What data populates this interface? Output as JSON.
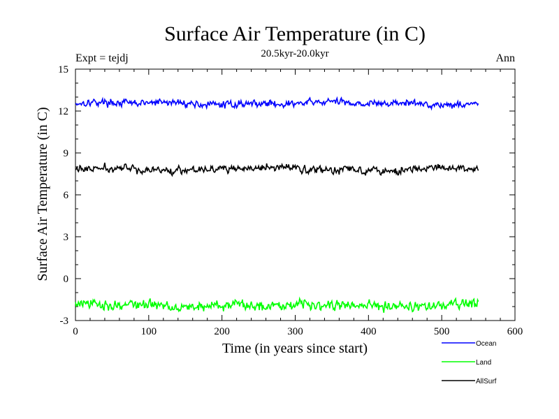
{
  "chart_data": {
    "type": "line",
    "title": "Surface Air Temperature (in C)",
    "subtitle": "20.5kyr-20.0kyr",
    "left_label": "Expt = tejdj",
    "right_label": "Ann",
    "xlabel": "Time (in years since start)",
    "ylabel": "Surface Air Temperature (in C)",
    "xlim": [
      0,
      600
    ],
    "ylim": [
      -3,
      15
    ],
    "xticks": [
      0,
      100,
      200,
      300,
      400,
      500,
      600
    ],
    "yticks": [
      -3,
      0,
      3,
      6,
      9,
      12,
      15
    ],
    "x_range": [
      0,
      550
    ],
    "legend_position": "bottom-right",
    "series": [
      {
        "name": "Ocean",
        "color": "#0000ff",
        "mean": 12.55,
        "noise": 0.12
      },
      {
        "name": "Land",
        "color": "#00ff00",
        "mean": -1.9,
        "noise": 0.17
      },
      {
        "name": "AllSurf",
        "color": "#000000",
        "mean": 7.85,
        "noise": 0.13
      }
    ]
  }
}
